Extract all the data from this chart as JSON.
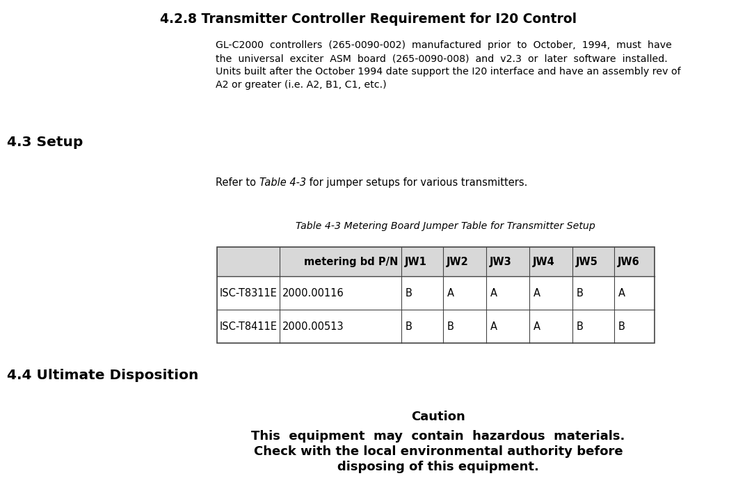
{
  "title": "4.2.8 Transmitter Controller Requirement for I20 Control",
  "para1_line1": "GL-C2000  controllers  (265-0090-002)  manufactured  prior  to  October,  1994,  must  have",
  "para1_line2": "the  universal  exciter  ASM  board  (265-0090-008)  and  v2.3  or  later  software  installed.",
  "para1_line3": "Units built after the October 1994 date support the I20 interface and have an assembly rev of",
  "para1_line4": "A2 or greater (i.e. A2, B1, C1, etc.)",
  "section2_heading": "4.3 Setup",
  "refer_text_pre": "Refer to ",
  "refer_text_italic": "Table 4-3",
  "refer_text_post": " for jumper setups for various transmitters.",
  "table_caption": "Table 4-3 Metering Board Jumper Table for Transmitter Setup",
  "col_headers": [
    "",
    "metering bd P/N",
    "JW1",
    "JW2",
    "JW3",
    "JW4",
    "JW5",
    "JW6"
  ],
  "rows": [
    [
      "ISC-T8311E",
      "2000.00116",
      "B",
      "A",
      "A",
      "A",
      "B",
      "A"
    ],
    [
      "ISC-T8411E",
      "2000.00513",
      "B",
      "B",
      "A",
      "A",
      "B",
      "B"
    ]
  ],
  "section3_heading": "4.4 Ultimate Disposition",
  "caution_heading": "Caution",
  "caution_body_line1": "This  equipment  may  contain  hazardous  materials.",
  "caution_body_line2": "Check with the local environmental authority before",
  "caution_body_line3": "disposing of this equipment.",
  "bg_color": "#ffffff",
  "text_color": "#000000",
  "table_header_bg": "#d8d8d8",
  "table_line_color": "#444444"
}
